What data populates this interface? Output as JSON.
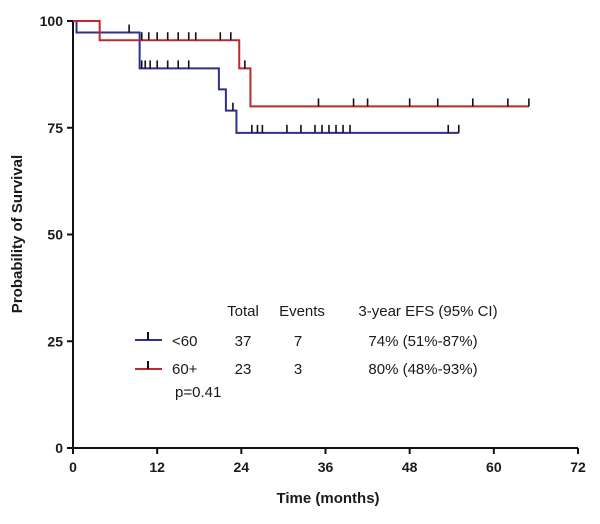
{
  "chart_data": {
    "type": "line",
    "subtype": "kaplan-meier",
    "title": "",
    "xlabel": "Time (months)",
    "ylabel": "Probability of Survival",
    "xlim": [
      0,
      72
    ],
    "ylim": [
      0,
      100
    ],
    "x_ticks": [
      0,
      12,
      24,
      36,
      48,
      60,
      72
    ],
    "y_ticks": [
      0,
      25,
      50,
      75,
      100
    ],
    "grid": false,
    "series": [
      {
        "name": "<60",
        "color": "#2e2f8f",
        "steps": [
          [
            0,
            100
          ],
          [
            0.5,
            97.3
          ],
          [
            9.5,
            88.9
          ],
          [
            20.8,
            84.0
          ],
          [
            21.8,
            79.0
          ],
          [
            23.3,
            73.8
          ],
          [
            55,
            73.8
          ]
        ],
        "censored": [
          [
            8,
            97.3
          ],
          [
            9.8,
            88.9
          ],
          [
            10.3,
            88.9
          ],
          [
            11,
            88.9
          ],
          [
            12,
            88.9
          ],
          [
            13.5,
            88.9
          ],
          [
            15,
            88.9
          ],
          [
            16.5,
            88.9
          ],
          [
            22.8,
            79.0
          ],
          [
            25.5,
            73.8
          ],
          [
            26.3,
            73.8
          ],
          [
            27,
            73.8
          ],
          [
            30.5,
            73.8
          ],
          [
            32.5,
            73.8
          ],
          [
            34.5,
            73.8
          ],
          [
            35.5,
            73.8
          ],
          [
            36.5,
            73.8
          ],
          [
            37.5,
            73.8
          ],
          [
            38.5,
            73.8
          ],
          [
            39.5,
            73.8
          ],
          [
            53.5,
            73.8
          ],
          [
            55,
            73.8
          ]
        ]
      },
      {
        "name": "60+",
        "color": "#c0282d",
        "steps": [
          [
            0,
            100
          ],
          [
            3.8,
            95.5
          ],
          [
            23.7,
            88.9
          ],
          [
            25.3,
            80.0
          ],
          [
            65,
            80.0
          ]
        ],
        "censored": [
          [
            9.8,
            95.5
          ],
          [
            10.8,
            95.5
          ],
          [
            12,
            95.5
          ],
          [
            13.5,
            95.5
          ],
          [
            15,
            95.5
          ],
          [
            16.5,
            95.5
          ],
          [
            17.5,
            95.5
          ],
          [
            21,
            95.5
          ],
          [
            22.5,
            95.5
          ],
          [
            24.5,
            88.9
          ],
          [
            35,
            80.0
          ],
          [
            40,
            80.0
          ],
          [
            42,
            80.0
          ],
          [
            48,
            80.0
          ],
          [
            52,
            80.0
          ],
          [
            57,
            80.0
          ],
          [
            62,
            80.0
          ],
          [
            65,
            80.0
          ]
        ]
      }
    ],
    "legend_table": {
      "headers": [
        "Total",
        "Events",
        "3-year EFS (95% CI)"
      ],
      "rows": [
        {
          "label": "<60",
          "total": "37",
          "events": "7",
          "efs": "74% (51%-87%)"
        },
        {
          "label": "60+",
          "total": "23",
          "events": "3",
          "efs": "80% (48%-93%)"
        }
      ],
      "pvalue": "p=0.41"
    }
  }
}
